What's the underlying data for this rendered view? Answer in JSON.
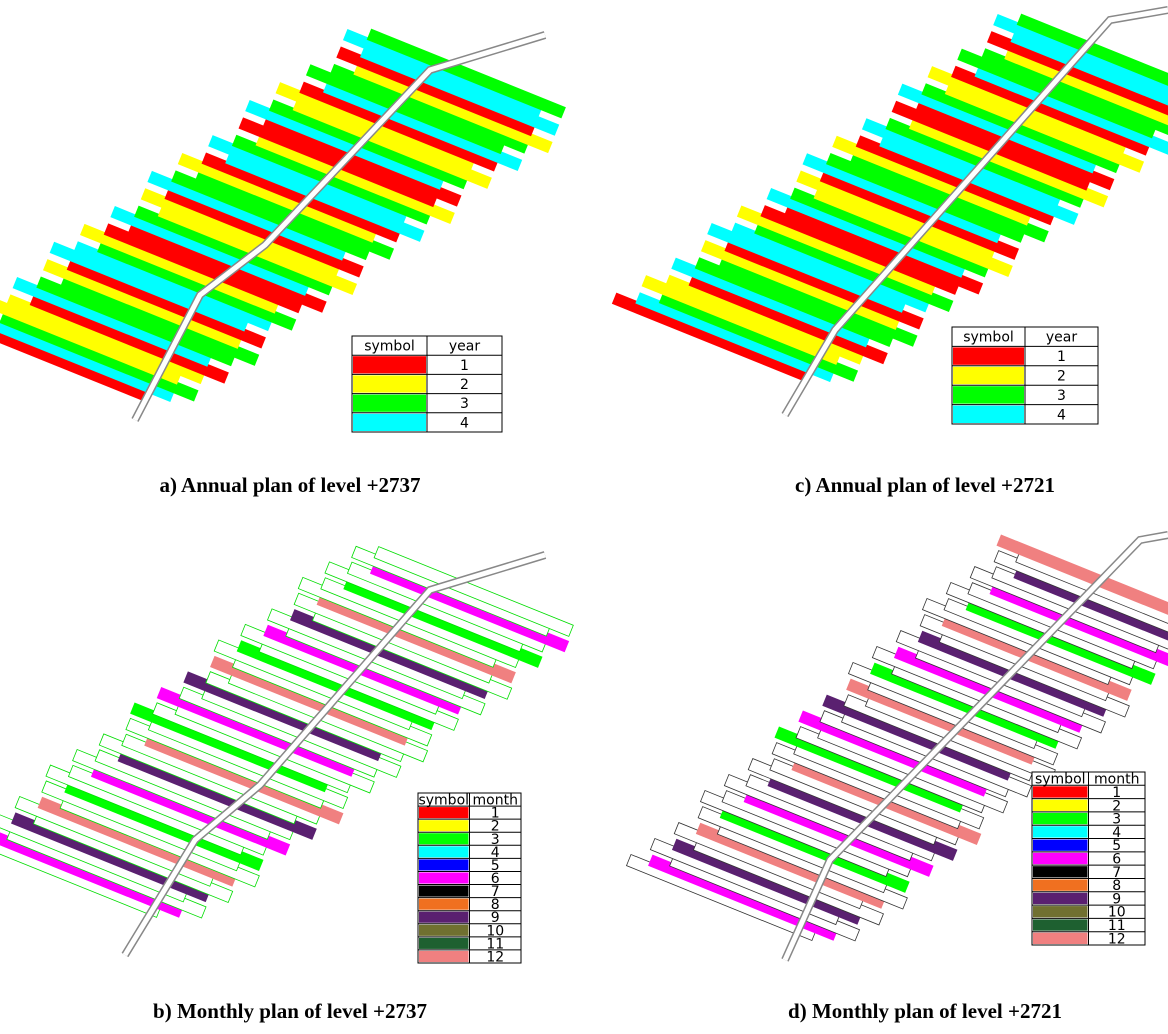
{
  "panels": [
    {
      "caption": "a) Annual plan of level +2737",
      "legend": {
        "header": [
          "symbol",
          "year"
        ],
        "rows": [
          {
            "color": "#ff0000",
            "label": "1"
          },
          {
            "color": "#ffff00",
            "label": "2"
          },
          {
            "color": "#00ff00",
            "label": "3"
          },
          {
            "color": "#00ffff",
            "label": "4"
          }
        ]
      }
    },
    {
      "caption": "c) Annual plan of level +2721",
      "legend": {
        "header": [
          "symbol",
          "year"
        ],
        "rows": [
          {
            "color": "#ff0000",
            "label": "1"
          },
          {
            "color": "#ffff00",
            "label": "2"
          },
          {
            "color": "#00ff00",
            "label": "3"
          },
          {
            "color": "#00ffff",
            "label": "4"
          }
        ]
      }
    },
    {
      "caption": "b) Monthly plan of level +2737",
      "legend": {
        "header": [
          "symbol",
          "month"
        ],
        "rows": [
          {
            "color": "#ff0000",
            "label": "1"
          },
          {
            "color": "#ffff00",
            "label": "2"
          },
          {
            "color": "#00ff00",
            "label": "3"
          },
          {
            "color": "#00ffff",
            "label": "4"
          },
          {
            "color": "#0000ff",
            "label": "5"
          },
          {
            "color": "#ff00ff",
            "label": "6"
          },
          {
            "color": "#000000",
            "label": "7"
          },
          {
            "color": "#f07020",
            "label": "8"
          },
          {
            "color": "#5a2070",
            "label": "9"
          },
          {
            "color": "#707030",
            "label": "10"
          },
          {
            "color": "#1e6030",
            "label": "11"
          },
          {
            "color": "#f08080",
            "label": "12"
          }
        ]
      }
    },
    {
      "caption": "d) Monthly plan of level +2721",
      "legend": {
        "header": [
          "symbol",
          "month"
        ],
        "rows": [
          {
            "color": "#ff0000",
            "label": "1"
          },
          {
            "color": "#ffff00",
            "label": "2"
          },
          {
            "color": "#00ff00",
            "label": "3"
          },
          {
            "color": "#00ffff",
            "label": "4"
          },
          {
            "color": "#0000ff",
            "label": "5"
          },
          {
            "color": "#ff00ff",
            "label": "6"
          },
          {
            "color": "#000000",
            "label": "7"
          },
          {
            "color": "#f07020",
            "label": "8"
          },
          {
            "color": "#5a2070",
            "label": "9"
          },
          {
            "color": "#707030",
            "label": "10"
          },
          {
            "color": "#1e6030",
            "label": "11"
          },
          {
            "color": "#f08080",
            "label": "12"
          }
        ]
      }
    }
  ]
}
